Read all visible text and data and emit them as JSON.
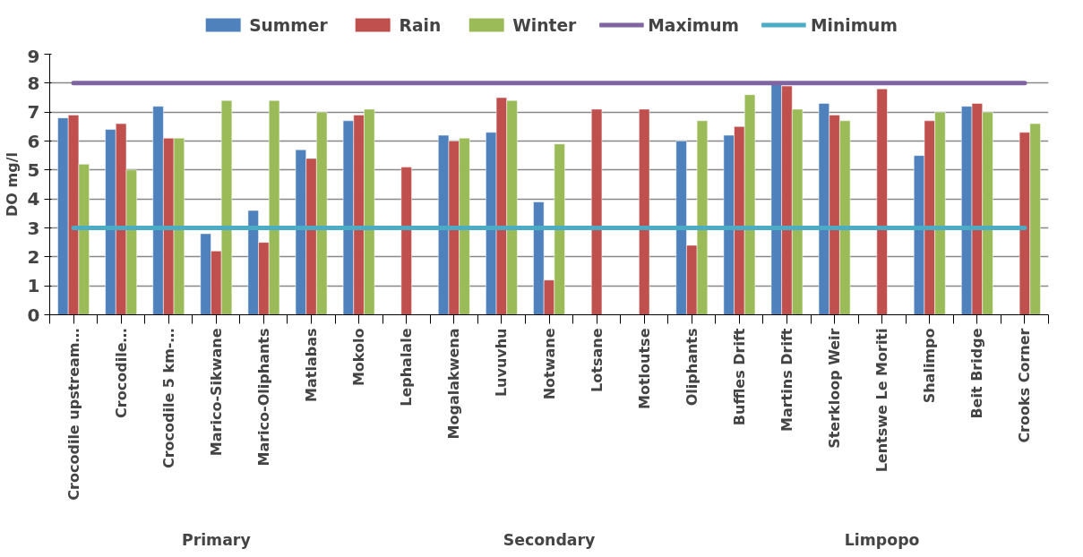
{
  "chart_data": {
    "type": "bar",
    "ylabel": "DO mg/l",
    "categories": [
      "Crocodile upstream…",
      "Crocodile…",
      "Crocodile 5 km-…",
      "Marico-Sikwane",
      "Marico-Oliphants",
      "Matlabas",
      "Mokolo",
      "Lephalale",
      "Mogalakwena",
      "Luvuvhu",
      "Notwane",
      "Lotsane",
      "Motloutse",
      "Oliphants",
      "Buffles Drift",
      "Martins Drift",
      "Sterkloop Weir",
      "Lentswe Le Moriti",
      "Shalimpo",
      "Beit Bridge",
      "Crooks Corner"
    ],
    "series": [
      {
        "name": "Summer",
        "color": "#4f81bd",
        "values": [
          6.8,
          6.4,
          7.2,
          2.8,
          3.6,
          5.7,
          6.7,
          null,
          6.2,
          6.3,
          3.9,
          null,
          null,
          6.0,
          6.2,
          8.0,
          7.3,
          null,
          5.5,
          7.2,
          null
        ]
      },
      {
        "name": "Rain",
        "color": "#c0504d",
        "values": [
          6.9,
          6.6,
          6.1,
          2.2,
          2.5,
          5.4,
          6.9,
          5.1,
          6.0,
          7.5,
          1.2,
          7.1,
          7.1,
          2.4,
          6.5,
          7.9,
          6.9,
          7.8,
          6.7,
          7.3,
          6.3
        ]
      },
      {
        "name": "Winter",
        "color": "#9bbb59",
        "values": [
          5.2,
          5.0,
          6.1,
          7.4,
          7.4,
          7.0,
          7.1,
          null,
          6.1,
          7.4,
          5.9,
          null,
          null,
          6.7,
          7.6,
          7.1,
          6.7,
          null,
          7.0,
          7.0,
          6.6
        ]
      },
      {
        "name": "Maximum",
        "type": "line",
        "color": "#8064a2",
        "values": [
          8,
          8,
          8,
          8,
          8,
          8,
          8,
          8,
          8,
          8,
          8,
          8,
          8,
          8,
          8,
          8,
          8,
          8,
          8,
          8,
          8
        ]
      },
      {
        "name": "Minimum",
        "type": "line",
        "color": "#4bacc6",
        "values": [
          3,
          3,
          3,
          3,
          3,
          3,
          3,
          3,
          3,
          3,
          3,
          3,
          3,
          3,
          3,
          3,
          3,
          3,
          3,
          3,
          3
        ]
      }
    ],
    "annotations": [
      "Primary",
      "Secondary",
      "Limpopo"
    ],
    "ylim": [
      0,
      9
    ],
    "yticks": [
      0,
      1,
      2,
      3,
      4,
      5,
      6,
      7,
      8,
      9
    ],
    "grid": "y",
    "legend": "top"
  }
}
